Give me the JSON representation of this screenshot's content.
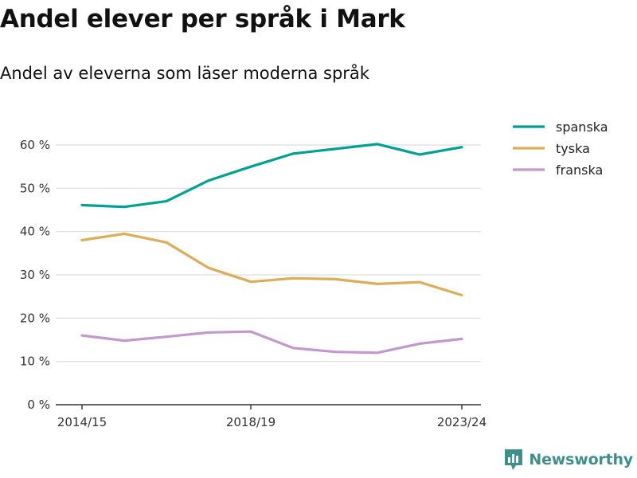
{
  "title": "Andel elever per språk i Mark",
  "subtitle": "Andel av eleverna som läser moderna språk",
  "brand": {
    "name": "Newsworthy",
    "color": "#3d8f8b"
  },
  "chart_data": {
    "type": "line",
    "x": [
      "2014/15",
      "2015/16",
      "2016/17",
      "2017/18",
      "2018/19",
      "2019/20",
      "2020/21",
      "2021/22",
      "2022/23",
      "2023/24"
    ],
    "x_tick_labels": [
      "2014/15",
      "2018/19",
      "2023/24"
    ],
    "ylim": [
      0,
      60
    ],
    "y_ticks": [
      0,
      10,
      20,
      30,
      40,
      50,
      60
    ],
    "y_tick_labels": [
      "0 %",
      "10 %",
      "20 %",
      "30 %",
      "40 %",
      "50 %",
      "60 %"
    ],
    "grid": true,
    "legend_position": "top-right",
    "series": [
      {
        "name": "spanska",
        "color": "#00a092",
        "values": [
          46.1,
          45.7,
          47.0,
          51.8,
          55.0,
          58.0,
          59.1,
          60.2,
          57.8,
          59.5
        ]
      },
      {
        "name": "tyska",
        "color": "#dbad58",
        "values": [
          38.0,
          39.5,
          37.5,
          31.6,
          28.4,
          29.2,
          29.0,
          27.9,
          28.3,
          25.3
        ]
      },
      {
        "name": "franska",
        "color": "#c298cd",
        "values": [
          16.0,
          14.8,
          15.7,
          16.7,
          16.9,
          13.1,
          12.2,
          12.0,
          14.1,
          15.2
        ]
      }
    ]
  }
}
